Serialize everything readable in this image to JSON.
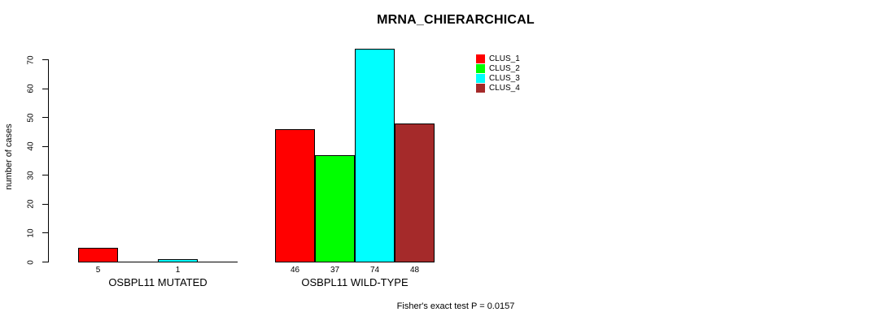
{
  "figure": {
    "title": "MRNA_CHIERARCHICAL",
    "footnote": "Fisher's exact test P = 0.0157"
  },
  "chart_data": {
    "type": "bar",
    "title": "MRNA_CHIERARCHICAL",
    "xlabel": "",
    "ylabel": "number of cases",
    "ylim": [
      0,
      70
    ],
    "yticks": [
      0,
      10,
      20,
      30,
      40,
      50,
      60,
      70
    ],
    "grid": false,
    "legend_position": "top-right",
    "categories": [
      "OSBPL11 MUTATED",
      "OSBPL11 WILD-TYPE"
    ],
    "series": [
      {
        "name": "CLUS_1",
        "color": "#ff0000",
        "values": [
          5,
          46
        ]
      },
      {
        "name": "CLUS_2",
        "color": "#00ff00",
        "values": [
          0,
          37
        ]
      },
      {
        "name": "CLUS_3",
        "color": "#00ffff",
        "values": [
          1,
          74
        ]
      },
      {
        "name": "CLUS_4",
        "color": "#a52a2a",
        "values": [
          0,
          48
        ]
      }
    ],
    "bar_value_labels": [
      "5",
      "1",
      "46",
      "37",
      "74",
      "48"
    ],
    "zero_value_labels_hidden": true,
    "annotation": "Fisher's exact test P = 0.0157",
    "axis_color": "#000000",
    "bar_border_color": "#000000"
  }
}
